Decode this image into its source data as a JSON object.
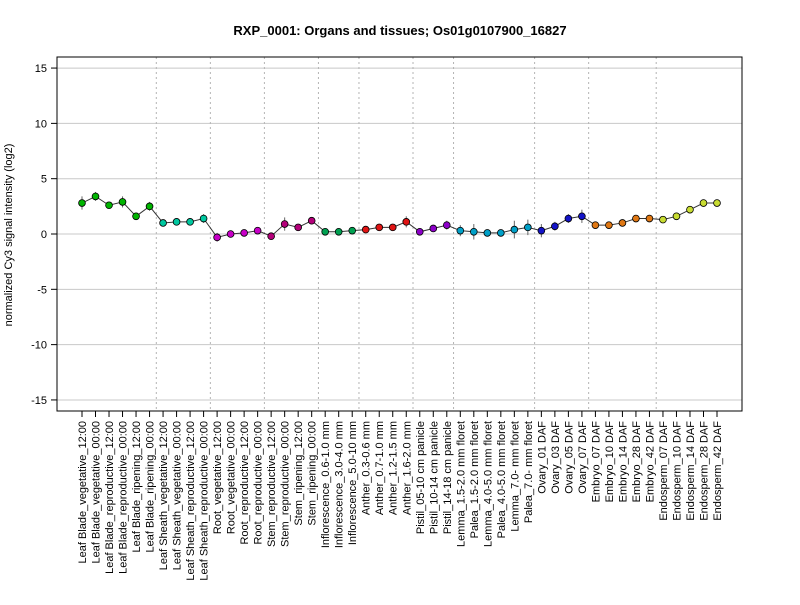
{
  "chart_data": {
    "type": "scatter",
    "title": "RXP_0001: Organs and tissues; Os01g0107900_16827",
    "xlabel": "",
    "ylabel": "normalized Cy3 signal intensity (log2)",
    "ylim": [
      -16,
      16
    ],
    "yticks": [
      -15,
      -10,
      -5,
      0,
      5,
      10,
      15
    ],
    "grid": true,
    "categories": [
      "Leaf Blade_vegetative_12:00",
      "Leaf Blade_vegetative_00:00",
      "Leaf Blade_reproductive_12:00",
      "Leaf Blade_reproductive_00:00",
      "Leaf Blade_ripening_12:00",
      "Leaf Blade_ripening_00:00",
      "Leaf Sheath_vegetative_12:00",
      "Leaf Sheath_vegetative_00:00",
      "Leaf Sheath_reproductive_12:00",
      "Leaf Sheath_reproductive_00:00",
      "Root_vegetative_12:00",
      "Root_vegetative_00:00",
      "Root_reproductive_12:00",
      "Root_reproductive_00:00",
      "Stem_reproductive_12:00",
      "Stem_reproductive_00:00",
      "Stem_ripening_12:00",
      "Stem_ripening_00:00",
      "Inflorescence_0.6-1.0 mm",
      "Inflorescence_3.0-4.0 mm",
      "Inflorescence_5.0-10 mm",
      "Anther_0.3-0.6 mm",
      "Anther_0.7-1.0 mm",
      "Anther_1.2-1.5 mm",
      "Anther_1.6-2.0 mm",
      "Pistil_05-10 cm panicle",
      "Pistil_10-14 cm panicle",
      "Pistil_14-18 cm panicle",
      "Lemma_1.5-2.0 mm floret",
      "Palea_1.5-2.0 mm floret",
      "Lemma_4.0-5.0 mm floret",
      "Palea_4.0-5.0 mm floret",
      "Lemma_7.0- mm floret",
      "Palea_7.0- mm floret",
      "Ovary_01 DAF",
      "Ovary_03 DAF",
      "Ovary_05 DAF",
      "Ovary_07 DAF",
      "Embryo_07 DAF",
      "Embryo_10 DAF",
      "Embryo_14 DAF",
      "Embryo_28 DAF",
      "Embryo_42 DAF",
      "Endosperm_07 DAF",
      "Endosperm_10 DAF",
      "Endosperm_14 DAF",
      "Endosperm_28 DAF",
      "Endosperm_42 DAF"
    ],
    "values": [
      2.8,
      3.4,
      2.6,
      2.9,
      1.6,
      2.5,
      1.0,
      1.1,
      1.1,
      1.4,
      -0.3,
      0.0,
      0.1,
      0.3,
      -0.2,
      0.9,
      0.6,
      1.2,
      0.2,
      0.2,
      0.3,
      0.4,
      0.6,
      0.6,
      1.1,
      0.2,
      0.5,
      0.8,
      0.3,
      0.2,
      0.1,
      0.1,
      0.4,
      0.6,
      0.3,
      0.7,
      1.4,
      1.6,
      0.8,
      0.8,
      1.0,
      1.4,
      1.4,
      1.3,
      1.6,
      2.2,
      2.8,
      2.8
    ],
    "errors": [
      0.6,
      0.4,
      0.2,
      0.5,
      0.3,
      0.4,
      0.1,
      0.1,
      0.1,
      0.4,
      0.4,
      0.3,
      0.1,
      0.3,
      0.3,
      0.6,
      0.2,
      0.1,
      0.3,
      0.1,
      0.2,
      0.3,
      0.2,
      0.2,
      0.5,
      0.1,
      0.2,
      0.4,
      0.5,
      0.7,
      0.1,
      0.2,
      0.8,
      0.7,
      0.6,
      0.4,
      0.4,
      0.6,
      0.2,
      0.1,
      0.1,
      0.1,
      0.1,
      0.1,
      0.1,
      0.2,
      0.1,
      0.1
    ],
    "colors": [
      "#00B400",
      "#00B400",
      "#00B400",
      "#00B400",
      "#00B400",
      "#00B400",
      "#00C8A0",
      "#00C8A0",
      "#00C8A0",
      "#00C8A0",
      "#C800C8",
      "#C800C8",
      "#C800C8",
      "#C800C8",
      "#B4007A",
      "#B4007A",
      "#B4007A",
      "#B4007A",
      "#00A050",
      "#00A050",
      "#00A050",
      "#E01414",
      "#E01414",
      "#E01414",
      "#E01414",
      "#8C00C8",
      "#8C00C8",
      "#8C00C8",
      "#00A0C8",
      "#00A0C8",
      "#00A0C8",
      "#00A0C8",
      "#00A0C8",
      "#00A0C8",
      "#1414C8",
      "#1414C8",
      "#1414C8",
      "#1414C8",
      "#E07814",
      "#E07814",
      "#E07814",
      "#E07814",
      "#E07814",
      "#C8DC32",
      "#C8DC32",
      "#C8DC32",
      "#C8DC32",
      "#C8DC32"
    ],
    "group_separators_after_index": [
      5,
      9,
      13,
      17,
      20,
      24,
      27,
      33,
      37,
      42
    ]
  }
}
